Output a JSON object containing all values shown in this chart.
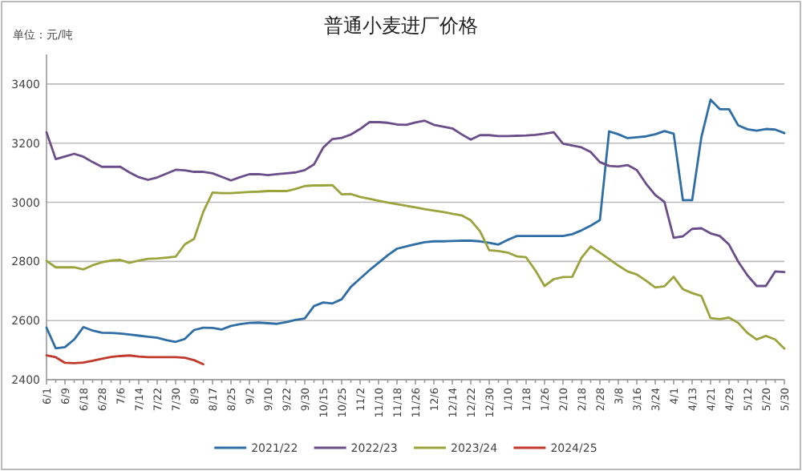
{
  "chart_data": {
    "type": "line",
    "title": "普通小麦进厂价格",
    "ylabel": "单位：元/吨",
    "categories": [
      "6/1",
      null,
      "6/9",
      null,
      "6/18",
      null,
      "6/28",
      null,
      "7/6",
      null,
      "7/14",
      null,
      "7/22",
      null,
      "7/30",
      null,
      "8/9",
      null,
      "8/17",
      null,
      "8/25",
      null,
      "9/2",
      null,
      "9/10",
      null,
      "9/22",
      null,
      "9/30",
      null,
      "10/15",
      null,
      "10/25",
      null,
      "11/2",
      null,
      "11/10",
      null,
      "11/18",
      null,
      "11/26",
      null,
      "12/6",
      null,
      "12/14",
      null,
      "12/22",
      null,
      "12/30",
      null,
      "1/10",
      null,
      "1/18",
      null,
      "1/26",
      null,
      "2/10",
      null,
      "2/18",
      null,
      "2/28",
      null,
      "3/8",
      null,
      "3/16",
      null,
      "3/24",
      null,
      "4/1",
      null,
      "4/13",
      null,
      "4/21",
      null,
      "4/29",
      null,
      "5/12",
      null,
      "5/20",
      null,
      "5/30"
    ],
    "ylim": [
      2400,
      3500
    ],
    "yticks": [
      2400,
      2600,
      2800,
      3000,
      3200,
      3400
    ],
    "grid": "y",
    "legend": "bottom",
    "series": [
      {
        "name": "2021/22",
        "color": "#2f6ea5",
        "values": [
          2576,
          2506,
          2510,
          2536,
          2578,
          2566,
          2559,
          2558,
          2556,
          2553,
          2549,
          2545,
          2542,
          2534,
          2528,
          2538,
          2568,
          2576,
          2575,
          2570,
          2582,
          2588,
          2592,
          2593,
          2591,
          2589,
          2595,
          2602,
          2607,
          2649,
          2661,
          2658,
          2672,
          2714,
          2742,
          2770,
          2795,
          2821,
          2843,
          2851,
          2858,
          2865,
          2868,
          2868,
          2869,
          2870,
          2870,
          2868,
          2863,
          2857,
          2873,
          2886,
          2886,
          2886,
          2886,
          2886,
          2886,
          2892,
          2905,
          2921,
          2940,
          3240,
          3230,
          3217,
          3220,
          3223,
          3230,
          3241,
          3232,
          3007,
          3007,
          3220,
          3347,
          3315,
          3315,
          3260,
          3247,
          3242,
          3248,
          3246,
          3234
        ]
      },
      {
        "name": "2022/23",
        "color": "#6b4d8a",
        "values": [
          3237,
          3146,
          3155,
          3164,
          3154,
          3136,
          3120,
          3120,
          3120,
          3101,
          3085,
          3076,
          3084,
          3097,
          3110,
          3108,
          3103,
          3103,
          3098,
          3086,
          3074,
          3085,
          3095,
          3095,
          3092,
          3095,
          3098,
          3101,
          3109,
          3128,
          3185,
          3214,
          3218,
          3229,
          3248,
          3271,
          3271,
          3269,
          3263,
          3262,
          3270,
          3276,
          3262,
          3256,
          3250,
          3230,
          3212,
          3227,
          3227,
          3224,
          3224,
          3225,
          3226,
          3228,
          3232,
          3237,
          3198,
          3192,
          3186,
          3170,
          3136,
          3123,
          3121,
          3126,
          3109,
          3063,
          3025,
          3001,
          2880,
          2885,
          2910,
          2912,
          2895,
          2886,
          2857,
          2799,
          2753,
          2717,
          2717,
          2766,
          2764
        ]
      },
      {
        "name": "2023/24",
        "color": "#9ba43c",
        "values": [
          2802,
          2780,
          2780,
          2780,
          2773,
          2787,
          2797,
          2803,
          2805,
          2795,
          2803,
          2809,
          2810,
          2813,
          2816,
          2858,
          2876,
          2968,
          3033,
          3031,
          3031,
          3033,
          3035,
          3036,
          3038,
          3038,
          3038,
          3045,
          3055,
          3057,
          3057,
          3058,
          3027,
          3028,
          3018,
          3012,
          3005,
          2999,
          2994,
          2988,
          2983,
          2977,
          2972,
          2967,
          2961,
          2956,
          2939,
          2902,
          2838,
          2835,
          2830,
          2817,
          2814,
          2770,
          2717,
          2740,
          2747,
          2748,
          2812,
          2851,
          2830,
          2808,
          2786,
          2766,
          2756,
          2735,
          2712,
          2716,
          2748,
          2706,
          2693,
          2683,
          2608,
          2605,
          2610,
          2592,
          2558,
          2536,
          2548,
          2536,
          2505
        ]
      },
      {
        "name": "2024/25",
        "color": "#c0392b",
        "values": [
          2482,
          2476,
          2457,
          2456,
          2458,
          2464,
          2471,
          2477,
          2480,
          2482,
          2478,
          2476,
          2476,
          2476,
          2476,
          2474,
          2466,
          2452,
          null,
          null,
          null,
          null,
          null,
          null,
          null,
          null,
          null,
          null,
          null,
          null,
          null,
          null,
          null,
          null,
          null,
          null,
          null,
          null,
          null,
          null,
          null,
          null,
          null,
          null,
          null,
          null,
          null,
          null,
          null,
          null,
          null,
          null,
          null,
          null,
          null,
          null,
          null,
          null,
          null,
          null,
          null,
          null,
          null,
          null,
          null,
          null,
          null,
          null,
          null,
          null,
          null,
          null,
          null,
          null,
          null,
          null,
          null,
          null,
          null,
          null,
          null
        ]
      }
    ]
  }
}
